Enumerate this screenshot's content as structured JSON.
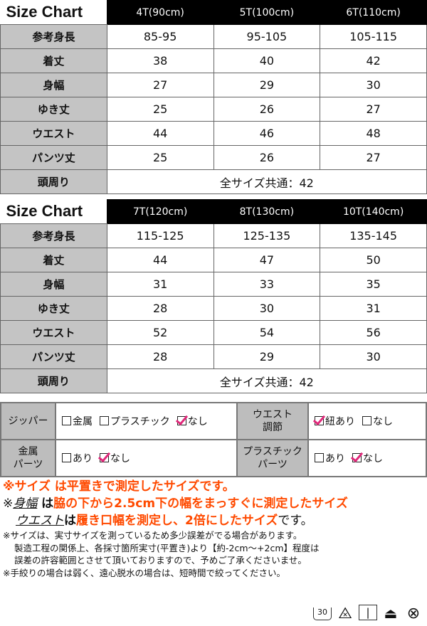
{
  "tables": [
    {
      "title": "Size Chart",
      "sizes": [
        "4T(90cm)",
        "5T(100cm)",
        "6T(110cm)"
      ],
      "rows": [
        {
          "label": "参考身長",
          "values": [
            "85-95",
            "95-105",
            "105-115"
          ]
        },
        {
          "label": "着丈",
          "values": [
            "38",
            "40",
            "42"
          ]
        },
        {
          "label": "身幅",
          "values": [
            "27",
            "29",
            "30"
          ]
        },
        {
          "label": "ゆき丈",
          "values": [
            "25",
            "26",
            "27"
          ]
        },
        {
          "label": "ウエスト",
          "values": [
            "44",
            "46",
            "48"
          ]
        },
        {
          "label": "パンツ丈",
          "values": [
            "25",
            "26",
            "27"
          ]
        }
      ],
      "head": {
        "label": "頭周り",
        "value": "全サイズ共通：42"
      }
    },
    {
      "title": "Size Chart",
      "sizes": [
        "7T(120cm)",
        "8T(130cm)",
        "10T(140cm)"
      ],
      "rows": [
        {
          "label": "参考身長",
          "values": [
            "115-125",
            "125-135",
            "135-145"
          ]
        },
        {
          "label": "着丈",
          "values": [
            "44",
            "47",
            "50"
          ]
        },
        {
          "label": "身幅",
          "values": [
            "31",
            "33",
            "35"
          ]
        },
        {
          "label": "ゆき丈",
          "values": [
            "28",
            "30",
            "31"
          ]
        },
        {
          "label": "ウエスト",
          "values": [
            "52",
            "54",
            "56"
          ]
        },
        {
          "label": "パンツ丈",
          "values": [
            "28",
            "29",
            "30"
          ]
        }
      ],
      "head": {
        "label": "頭周り",
        "value": "全サイズ共通：42"
      }
    }
  ],
  "options": {
    "zipper": {
      "label": "ジッパー",
      "choices": [
        {
          "text": "金属",
          "checked": false
        },
        {
          "text": "プラスチック",
          "checked": false
        },
        {
          "text": "なし",
          "checked": true
        }
      ]
    },
    "waist": {
      "label1": "ウエスト",
      "label2": "調節",
      "choices": [
        {
          "text": "紐あり",
          "checked": true
        },
        {
          "text": "なし",
          "checked": false
        }
      ]
    },
    "metal_parts": {
      "label1": "金属",
      "label2": "パーツ",
      "choices": [
        {
          "text": "あり",
          "checked": false
        },
        {
          "text": "なし",
          "checked": true
        }
      ]
    },
    "plastic_parts": {
      "label1": "プラスチック",
      "label2": "パーツ",
      "choices": [
        {
          "text": "あり",
          "checked": false
        },
        {
          "text": "なし",
          "checked": true
        }
      ]
    }
  },
  "notes": {
    "line1": "※サイズ は平置きで測定したサイズです。",
    "l2_mark": "※",
    "l2_term": "身幅",
    "l2_wa": " は",
    "l2_text": "脇の下から2.5cm下の幅をまっすぐに測定したサイズ",
    "l3_term": "ウエスト",
    "l3_wa": "は",
    "l3_text": "履き口幅を測定し、2倍にしたサイズ",
    "l3_end": "です。",
    "p1": "※サイズは、実寸サイズを測っているため多少誤差がでる場合があります。",
    "p2": "製造工程の関係上、各採寸箇所実寸(平置き)より【約-2cm～+2cm】程度は",
    "p3": "誤差の許容範囲とさせて頂いておりますので、予めご了承くださいませ。",
    "p4": "※手絞りの場合は弱く、遠心脱水の場合は、短時間で絞ってください。"
  },
  "care_icons": [
    {
      "icon": "wash-30-icon",
      "text": "30"
    },
    {
      "icon": "no-bleach-icon"
    },
    {
      "icon": "line-dry-icon"
    },
    {
      "icon": "iron-low-icon"
    },
    {
      "icon": "no-tumble-dry-icon"
    }
  ],
  "colors": {
    "accent": "#ff4a00",
    "check": "#e0287a",
    "label_bg": "#c4c4c4",
    "header_bg": "#000000"
  }
}
